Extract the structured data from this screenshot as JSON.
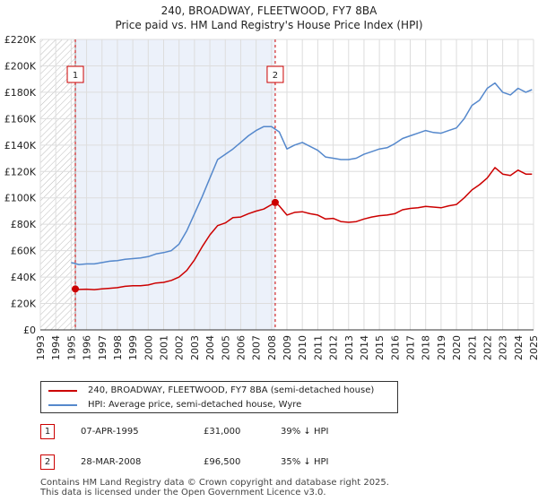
{
  "chart_data": {
    "type": "line",
    "title": "240, BROADWAY, FLEETWOOD, FY7 8BA",
    "subtitle": "Price paid vs. HM Land Registry's House Price Index (HPI)",
    "xlim": [
      1993,
      2025
    ],
    "ylim": [
      0,
      220000
    ],
    "y_ticks": [
      0,
      20000,
      40000,
      60000,
      80000,
      100000,
      120000,
      140000,
      160000,
      180000,
      200000,
      220000
    ],
    "y_tick_labels": [
      "£0",
      "£20K",
      "£40K",
      "£60K",
      "£80K",
      "£100K",
      "£120K",
      "£140K",
      "£160K",
      "£180K",
      "£200K",
      "£220K"
    ],
    "x_ticks": [
      1993,
      1994,
      1995,
      1996,
      1997,
      1998,
      1999,
      2000,
      2001,
      2002,
      2003,
      2004,
      2005,
      2006,
      2007,
      2008,
      2009,
      2010,
      2011,
      2012,
      2013,
      2014,
      2015,
      2016,
      2017,
      2018,
      2019,
      2020,
      2021,
      2022,
      2023,
      2024,
      2025
    ],
    "x_tick_labels": [
      "1993",
      "1994",
      "1995",
      "1996",
      "1997",
      "1998",
      "1999",
      "2000",
      "2001",
      "2002",
      "2003",
      "2004",
      "2005",
      "2006",
      "2007",
      "2008",
      "2009",
      "2010",
      "2011",
      "2012",
      "2013",
      "2014",
      "2015",
      "2016",
      "2017",
      "2018",
      "2019",
      "2020",
      "2021",
      "2022",
      "2023",
      "2024",
      "2025"
    ],
    "hatch_until": 1995.27,
    "shade_range": [
      1995.27,
      2008.24
    ],
    "series": [
      {
        "name": "240, BROADWAY, FLEETWOOD, FY7 8BA (semi-detached house)",
        "color": "#cc0000",
        "points": [
          [
            1995.27,
            31000
          ],
          [
            1995.5,
            30600
          ],
          [
            1996,
            30800
          ],
          [
            1996.5,
            30500
          ],
          [
            1997,
            31000
          ],
          [
            1997.5,
            31500
          ],
          [
            1998,
            32000
          ],
          [
            1998.5,
            33000
          ],
          [
            1999,
            33500
          ],
          [
            1999.5,
            33500
          ],
          [
            2000,
            34000
          ],
          [
            2000.5,
            35500
          ],
          [
            2001,
            36000
          ],
          [
            2001.5,
            37500
          ],
          [
            2002,
            40000
          ],
          [
            2002.5,
            45000
          ],
          [
            2003,
            53000
          ],
          [
            2003.5,
            63000
          ],
          [
            2004,
            72000
          ],
          [
            2004.5,
            79000
          ],
          [
            2005,
            81000
          ],
          [
            2005.5,
            85000
          ],
          [
            2006,
            85500
          ],
          [
            2006.5,
            88000
          ],
          [
            2007,
            90000
          ],
          [
            2007.5,
            91500
          ],
          [
            2008.24,
            96500
          ],
          [
            2008.5,
            94000
          ],
          [
            2009,
            87000
          ],
          [
            2009.5,
            89000
          ],
          [
            2010,
            89500
          ],
          [
            2010.5,
            88000
          ],
          [
            2011,
            87000
          ],
          [
            2011.5,
            84000
          ],
          [
            2012,
            84500
          ],
          [
            2012.5,
            82000
          ],
          [
            2013,
            81500
          ],
          [
            2013.5,
            82000
          ],
          [
            2014,
            84000
          ],
          [
            2014.5,
            85500
          ],
          [
            2015,
            86500
          ],
          [
            2015.5,
            87000
          ],
          [
            2016,
            88000
          ],
          [
            2016.5,
            91000
          ],
          [
            2017,
            92000
          ],
          [
            2017.5,
            92500
          ],
          [
            2018,
            93500
          ],
          [
            2018.5,
            93000
          ],
          [
            2019,
            92500
          ],
          [
            2019.5,
            94000
          ],
          [
            2020,
            95000
          ],
          [
            2020.5,
            100000
          ],
          [
            2021,
            106000
          ],
          [
            2021.5,
            110000
          ],
          [
            2022,
            115000
          ],
          [
            2022.5,
            123000
          ],
          [
            2023,
            118000
          ],
          [
            2023.5,
            117000
          ],
          [
            2024,
            121000
          ],
          [
            2024.5,
            118000
          ],
          [
            2024.9,
            118000
          ]
        ]
      },
      {
        "name": "HPI: Average price, semi-detached house, Wyre",
        "color": "#5588cc",
        "points": [
          [
            1995,
            51000
          ],
          [
            1995.5,
            49500
          ],
          [
            1996,
            50000
          ],
          [
            1996.5,
            50000
          ],
          [
            1997,
            51000
          ],
          [
            1997.5,
            52000
          ],
          [
            1998,
            52500
          ],
          [
            1998.5,
            53500
          ],
          [
            1999,
            54000
          ],
          [
            1999.5,
            54500
          ],
          [
            2000,
            55500
          ],
          [
            2000.5,
            57500
          ],
          [
            2001,
            58500
          ],
          [
            2001.5,
            60000
          ],
          [
            2002,
            65000
          ],
          [
            2002.5,
            75000
          ],
          [
            2003,
            88000
          ],
          [
            2003.5,
            101000
          ],
          [
            2004,
            115000
          ],
          [
            2004.5,
            129000
          ],
          [
            2005,
            133000
          ],
          [
            2005.5,
            137000
          ],
          [
            2006,
            142000
          ],
          [
            2006.5,
            147000
          ],
          [
            2007,
            151000
          ],
          [
            2007.5,
            154000
          ],
          [
            2008,
            154000
          ],
          [
            2008.5,
            150000
          ],
          [
            2009,
            137000
          ],
          [
            2009.5,
            140000
          ],
          [
            2010,
            142000
          ],
          [
            2010.5,
            139000
          ],
          [
            2011,
            136000
          ],
          [
            2011.5,
            131000
          ],
          [
            2012,
            130000
          ],
          [
            2012.5,
            129000
          ],
          [
            2013,
            129000
          ],
          [
            2013.5,
            130000
          ],
          [
            2014,
            133000
          ],
          [
            2014.5,
            135000
          ],
          [
            2015,
            137000
          ],
          [
            2015.5,
            138000
          ],
          [
            2016,
            141000
          ],
          [
            2016.5,
            145000
          ],
          [
            2017,
            147000
          ],
          [
            2017.5,
            149000
          ],
          [
            2018,
            151000
          ],
          [
            2018.5,
            149500
          ],
          [
            2019,
            149000
          ],
          [
            2019.5,
            151000
          ],
          [
            2020,
            153000
          ],
          [
            2020.5,
            160000
          ],
          [
            2021,
            170000
          ],
          [
            2021.5,
            174000
          ],
          [
            2022,
            183000
          ],
          [
            2022.5,
            187000
          ],
          [
            2023,
            180000
          ],
          [
            2023.5,
            178000
          ],
          [
            2024,
            183000
          ],
          [
            2024.5,
            180000
          ],
          [
            2024.9,
            182000
          ]
        ]
      }
    ],
    "annotations": [
      {
        "label": "1",
        "x": 1995.27,
        "y": 31000
      },
      {
        "label": "2",
        "x": 2008.24,
        "y": 96500
      }
    ]
  },
  "legend": {
    "items": [
      {
        "label": "240, BROADWAY, FLEETWOOD, FY7 8BA (semi-detached house)",
        "color": "#cc0000"
      },
      {
        "label": "HPI: Average price, semi-detached house, Wyre",
        "color": "#5588cc"
      }
    ]
  },
  "sales": [
    {
      "num": "1",
      "date": "07-APR-1995",
      "price": "£31,000",
      "hpi": "39% ↓ HPI"
    },
    {
      "num": "2",
      "date": "28-MAR-2008",
      "price": "£96,500",
      "hpi": "35% ↓ HPI"
    }
  ],
  "footer": {
    "line1": "Contains HM Land Registry data © Crown copyright and database right 2025.",
    "line2": "This data is licensed under the Open Government Licence v3.0."
  }
}
